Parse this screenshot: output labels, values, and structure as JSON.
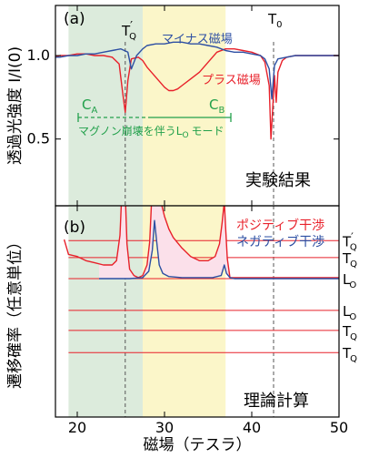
{
  "chart_data": [
    {
      "type": "line",
      "panel_label": "(a)",
      "ylabel": "透過光強度 I/I(0)",
      "xlim": [
        17.5,
        50
      ],
      "ylim": [
        0.1,
        1.3
      ],
      "yticks": [
        0.5,
        1.0
      ],
      "ytick_labels": [
        "0.5",
        "1.0"
      ],
      "regions": [
        {
          "name": "C_A",
          "label": "C",
          "sub": "A",
          "x_range": [
            19,
            27.5
          ],
          "color": "#dcebdc"
        },
        {
          "name": "C_B",
          "label": "C",
          "sub": "B",
          "x_range": [
            27.5,
            37
          ],
          "color": "#fbf6c9"
        }
      ],
      "dashed_lines": [
        {
          "label": "T",
          "sub": "Q",
          "prime": "′",
          "x": 25.5
        },
        {
          "label": "T",
          "sub": "0",
          "prime": "",
          "x": 42.5
        }
      ],
      "annotation": {
        "text": "マグノン崩壊を伴うL",
        "sub": "O",
        "tail": "モード"
      },
      "result_label": "実験結果",
      "series": [
        {
          "name": "プラス磁場",
          "color": "#e8202a",
          "x": [
            17.5,
            18,
            19,
            20,
            21,
            22,
            23,
            24,
            24.8,
            25.2,
            25.5,
            25.8,
            26.2,
            27,
            27.5,
            28,
            28.5,
            29,
            29.5,
            30,
            30.5,
            31,
            31.5,
            32,
            33,
            34,
            35,
            36,
            37,
            38,
            39,
            40,
            41,
            41.5,
            42,
            42.2,
            42.4,
            42.6,
            42.8,
            43,
            43.5,
            44,
            45,
            46,
            47,
            48,
            49,
            50
          ],
          "y": [
            0.99,
            1.0,
            1.0,
            1.01,
            1.01,
            1.0,
            1.0,
            0.99,
            0.95,
            0.78,
            0.66,
            0.85,
            0.98,
            0.99,
            0.97,
            0.93,
            0.9,
            0.87,
            0.84,
            0.81,
            0.79,
            0.79,
            0.8,
            0.82,
            0.86,
            0.9,
            0.96,
            1.02,
            1.04,
            1.04,
            1.03,
            1.02,
            1.0,
            0.96,
            0.82,
            0.5,
            0.68,
            0.88,
            0.72,
            0.9,
            0.97,
            0.99,
            1.0,
            1.0,
            1.0,
            1.0,
            1.0,
            1.0
          ]
        },
        {
          "name": "マイナス磁場",
          "color": "#2d4fa3",
          "x": [
            17.5,
            18,
            19,
            20,
            21,
            22,
            23,
            24,
            25,
            25.8,
            26.2,
            26.8,
            27.5,
            28,
            29,
            30,
            31,
            32,
            33,
            34,
            35,
            36,
            37,
            38,
            39,
            40,
            41,
            41.5,
            42,
            42.3,
            42.6,
            43,
            44,
            45,
            46,
            47,
            48,
            49,
            50
          ],
          "y": [
            0.99,
            0.99,
            1.0,
            1.0,
            1.01,
            1.01,
            1.02,
            1.03,
            1.04,
            1.02,
            0.92,
            1.0,
            1.04,
            1.06,
            1.07,
            1.07,
            1.08,
            1.08,
            1.07,
            1.07,
            1.06,
            1.05,
            1.03,
            1.02,
            1.02,
            1.01,
            1.0,
            0.98,
            0.92,
            0.74,
            0.94,
            0.98,
            0.99,
            1.0,
            1.0,
            1.0,
            1.0,
            1.0,
            1.0
          ]
        }
      ]
    },
    {
      "type": "line",
      "panel_label": "(b)",
      "ylabel": "遷移確率（任意単位）",
      "xlabel": "磁場（テスラ）",
      "xlim": [
        17.5,
        50
      ],
      "xticks": [
        20,
        30,
        40,
        50
      ],
      "xtick_labels": [
        "20",
        "30",
        "40",
        "50"
      ],
      "result_label": "理論計算",
      "mode_levels": [
        {
          "label": "T",
          "sub": "Q",
          "prime": "′",
          "level": 0.835
        },
        {
          "label": "T",
          "sub": "Q",
          "prime": "",
          "level": 0.755
        },
        {
          "label": "L",
          "sub": "O",
          "prime": "",
          "level": 0.655
        },
        {
          "label": "L",
          "sub": "O",
          "prime": "",
          "level": 0.505
        },
        {
          "label": "T",
          "sub": "Q",
          "prime": "",
          "level": 0.41
        },
        {
          "label": "T",
          "sub": "Q",
          "prime": "",
          "level": 0.305
        }
      ],
      "series": [
        {
          "name": "ポジティブ干渉",
          "color": "#e8202a",
          "x": [
            18.5,
            19,
            20,
            21,
            22,
            23,
            24,
            24.5,
            24.9,
            25.1,
            25.3,
            25.5,
            25.7,
            26,
            26.5,
            27,
            27.5,
            28,
            28.3,
            28.6,
            28.8,
            29,
            29.3,
            29.7,
            30,
            30.5,
            31,
            32,
            33,
            34,
            35,
            35.8,
            36.3,
            36.6,
            36.85,
            37,
            37.2,
            37.5,
            38,
            39,
            40,
            41,
            42,
            43,
            44,
            45,
            46,
            47,
            48,
            49,
            50
          ],
          "y": [
            0.84,
            0.77,
            0.76,
            0.74,
            0.73,
            0.72,
            0.72,
            0.74,
            0.86,
            1.06,
            1.3,
            1.06,
            0.82,
            0.7,
            0.67,
            0.66,
            0.67,
            0.72,
            0.83,
            1.1,
            1.3,
            1.3,
            1.08,
            1.0,
            0.95,
            0.89,
            0.85,
            0.8,
            0.76,
            0.74,
            0.74,
            0.76,
            0.82,
            0.92,
            1.02,
            0.9,
            0.75,
            0.66,
            0.66,
            0.66,
            0.66,
            0.66,
            0.66,
            0.66,
            0.66,
            0.66,
            0.66,
            0.66,
            0.66,
            0.66,
            0.66
          ]
        },
        {
          "name": "ネガティブ干渉",
          "color": "#2d4fa3",
          "x": [
            22.5,
            24,
            26,
            27.5,
            28.2,
            28.6,
            28.85,
            29.1,
            29.4,
            29.8,
            30.5,
            32,
            34,
            35.5,
            36.5,
            36.85,
            37.1,
            37.5,
            38,
            40,
            42,
            44,
            46,
            48,
            50
          ],
          "y": [
            0.655,
            0.655,
            0.655,
            0.66,
            0.69,
            0.79,
            0.93,
            0.83,
            0.72,
            0.68,
            0.665,
            0.66,
            0.66,
            0.66,
            0.67,
            0.72,
            0.68,
            0.66,
            0.655,
            0.655,
            0.655,
            0.655,
            0.655,
            0.655,
            0.655
          ]
        }
      ]
    }
  ]
}
